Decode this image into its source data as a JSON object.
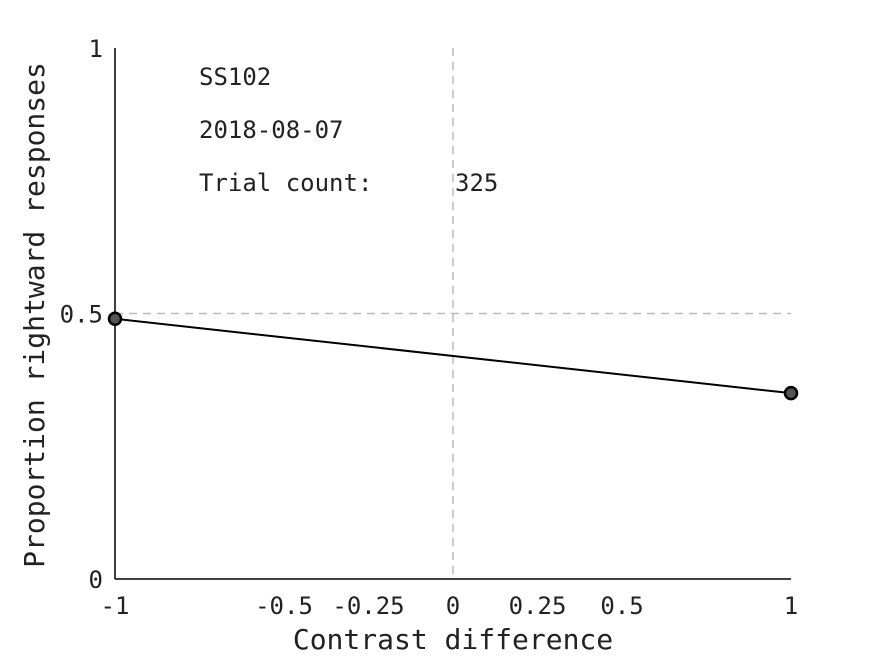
{
  "chart_data": {
    "type": "line",
    "title": "",
    "xlabel": "Contrast difference",
    "ylabel": "Proportion rightward responses",
    "xlim": [
      -1,
      1
    ],
    "ylim": [
      0,
      1
    ],
    "x_ticks": [
      {
        "value": -1,
        "label": "-1"
      },
      {
        "value": -0.5,
        "label": "-0.5"
      },
      {
        "value": -0.25,
        "label": "-0.25"
      },
      {
        "value": 0,
        "label": "0"
      },
      {
        "value": 0.25,
        "label": "0.25"
      },
      {
        "value": 0.5,
        "label": "0.5"
      },
      {
        "value": 1,
        "label": "1"
      }
    ],
    "y_ticks": [
      {
        "value": 0,
        "label": "0"
      },
      {
        "value": 0.5,
        "label": "0.5"
      },
      {
        "value": 1,
        "label": "1"
      }
    ],
    "reference_lines": {
      "x": 0,
      "y": 0.5
    },
    "grid": false,
    "series": [
      {
        "x": [
          -1,
          1
        ],
        "y": [
          0.49,
          0.35
        ]
      }
    ],
    "colors": {
      "line": "#000000",
      "marker_fill": "#555555",
      "marker_edge": "#000000",
      "reference": "#bbbbbb",
      "axis": "#000000"
    }
  },
  "annotations": {
    "subject": "SS102",
    "date": "2018-08-07",
    "trial_count_label": "Trial count:",
    "trial_count_value": "325"
  }
}
